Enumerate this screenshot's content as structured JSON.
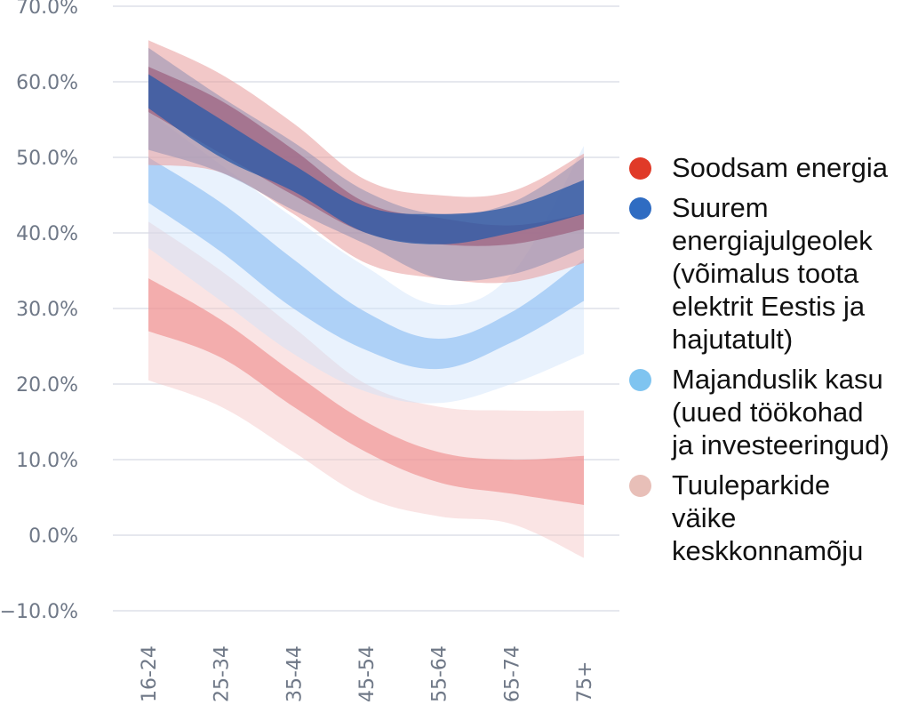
{
  "chart_data": {
    "type": "area",
    "categories": [
      "16-24",
      "25-34",
      "35-44",
      "45-54",
      "55-64",
      "65-74",
      "75+"
    ],
    "ylim": [
      -10,
      70
    ],
    "yticks": [
      -10,
      0,
      10,
      20,
      30,
      40,
      50,
      60,
      70
    ],
    "ytick_labels": [
      "−10.0%",
      "0.0%",
      "10.0%",
      "20.0%",
      "30.0%",
      "40.0%",
      "50.0%",
      "60.0%",
      "70.0%"
    ],
    "series": [
      {
        "name": "Tuuleparkide\nväike\nkeskkonnamõju",
        "color": "#e8bfb8",
        "inner_color": "#f08f8f",
        "outer_color": "#f5c3c3",
        "inner_low": [
          27.0,
          23.5,
          17.0,
          11.0,
          7.0,
          5.5,
          4.0
        ],
        "inner_high": [
          34.0,
          28.5,
          21.5,
          15.0,
          11.0,
          10.0,
          10.5
        ],
        "outer_low": [
          20.5,
          17.0,
          11.0,
          5.0,
          2.5,
          1.5,
          -3.0
        ],
        "outer_high": [
          41.5,
          35.0,
          27.5,
          20.0,
          17.0,
          16.5,
          16.5
        ]
      },
      {
        "name": "Majanduslik kasu\n(uued töökohad\nja investeeringud)",
        "color": "#7fc4f0",
        "inner_color": "#8fbff5",
        "outer_color": "#cfe2fb",
        "inner_low": [
          44.0,
          37.5,
          30.0,
          24.5,
          22.0,
          25.5,
          31.0
        ],
        "inner_high": [
          50.0,
          44.0,
          36.5,
          29.5,
          26.0,
          29.5,
          36.5
        ],
        "outer_low": [
          38.0,
          31.0,
          24.0,
          19.0,
          17.5,
          20.0,
          24.0
        ],
        "outer_high": [
          56.0,
          49.0,
          42.0,
          35.5,
          30.5,
          34.5,
          51.5
        ]
      },
      {
        "name": "Soodsam energia",
        "color": "#e03a28",
        "inner_color": "#b23a4f",
        "outer_color": "#e79b9b",
        "inner_low": [
          56.0,
          50.5,
          45.0,
          40.0,
          38.5,
          38.5,
          40.5
        ],
        "inner_high": [
          62.0,
          57.5,
          51.0,
          44.0,
          42.0,
          41.0,
          42.5
        ],
        "outer_low": [
          49.0,
          48.0,
          42.5,
          36.0,
          34.0,
          33.5,
          36.0
        ],
        "outer_high": [
          65.5,
          61.0,
          54.5,
          47.0,
          45.0,
          45.5,
          50.5
        ]
      },
      {
        "name": "Suurem\nenergiajulgeolek\n(võimalus toota\nelektrit Eestis ja\nhajutatult)",
        "color": "#2f6cc2",
        "inner_color": "#2f5ca8",
        "outer_color": "#8f8fb3",
        "inner_low": [
          56.5,
          50.0,
          45.5,
          40.0,
          38.5,
          40.0,
          42.5
        ],
        "inner_high": [
          61.0,
          55.0,
          49.0,
          43.5,
          42.5,
          43.5,
          47.0
        ],
        "outer_low": [
          51.0,
          48.0,
          43.0,
          38.5,
          34.0,
          34.5,
          38.0
        ],
        "outer_high": [
          64.5,
          58.0,
          52.0,
          45.5,
          42.5,
          44.0,
          50.0
        ]
      }
    ],
    "legend_order": [
      2,
      3,
      1,
      0
    ]
  }
}
